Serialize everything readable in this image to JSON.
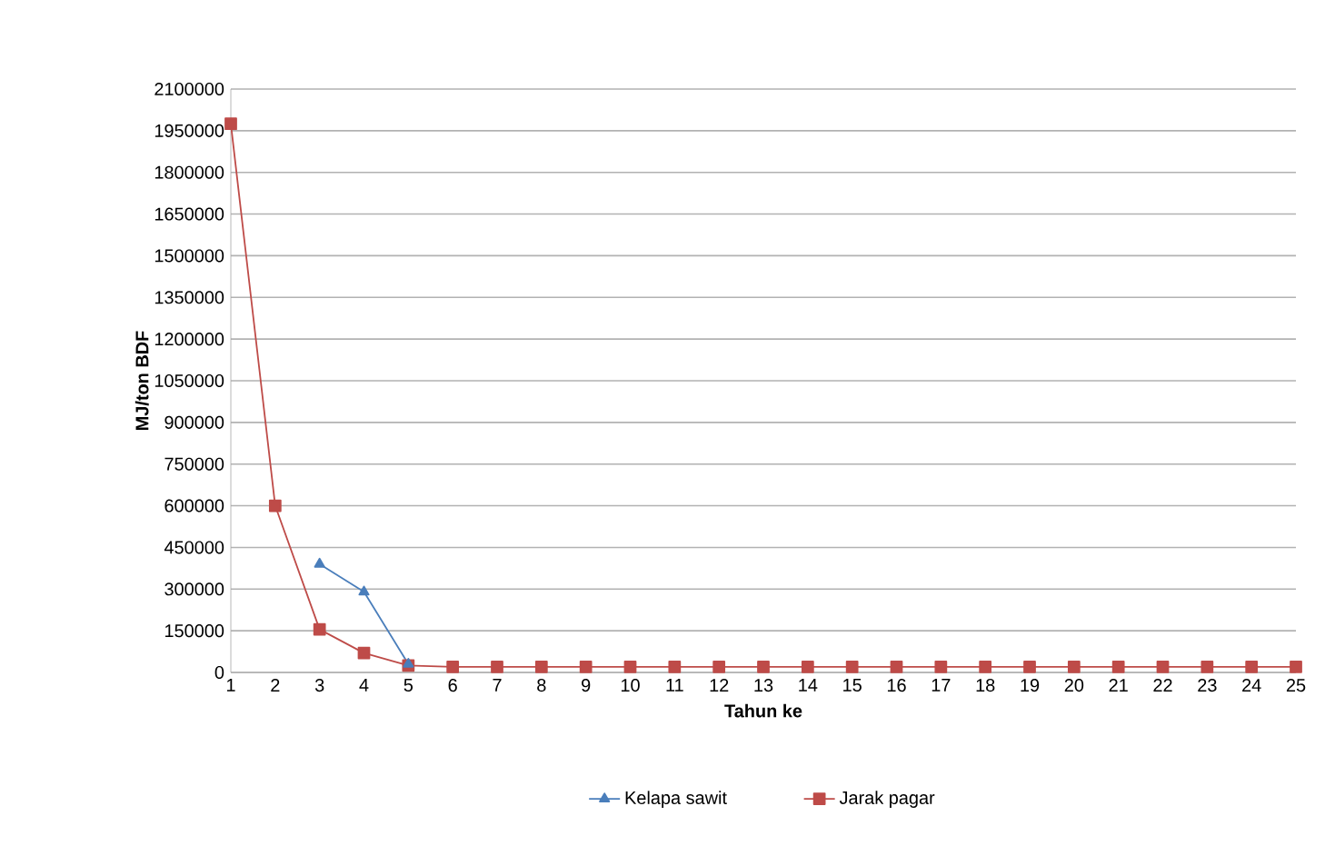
{
  "chart_data": {
    "type": "line",
    "xlabel": "Tahun ke",
    "ylabel": "MJ/ton BDF",
    "categories": [
      "1",
      "2",
      "3",
      "4",
      "5",
      "6",
      "7",
      "8",
      "9",
      "10",
      "11",
      "12",
      "13",
      "14",
      "15",
      "16",
      "17",
      "18",
      "19",
      "20",
      "21",
      "22",
      "23",
      "24",
      "25"
    ],
    "series": [
      {
        "name": "Kelapa sawit",
        "color": "#4a7ebb",
        "marker": "triangle",
        "values": [
          null,
          null,
          390000,
          290000,
          30000,
          null,
          null,
          null,
          null,
          null,
          null,
          null,
          null,
          null,
          null,
          null,
          null,
          null,
          null,
          null,
          null,
          null,
          null,
          null,
          null
        ]
      },
      {
        "name": "Jarak pagar",
        "color": "#be4b48",
        "marker": "square",
        "values": [
          1975000,
          600000,
          155000,
          70000,
          25000,
          20000,
          20000,
          20000,
          20000,
          20000,
          20000,
          20000,
          20000,
          20000,
          20000,
          20000,
          20000,
          20000,
          20000,
          20000,
          20000,
          20000,
          20000,
          20000,
          20000
        ]
      }
    ],
    "ylim": [
      0,
      2100000
    ],
    "yticks": [
      0,
      150000,
      300000,
      450000,
      600000,
      750000,
      900000,
      1050000,
      1200000,
      1350000,
      1500000,
      1650000,
      1800000,
      1950000,
      2100000
    ],
    "grid": "y",
    "legend": "bottom"
  }
}
